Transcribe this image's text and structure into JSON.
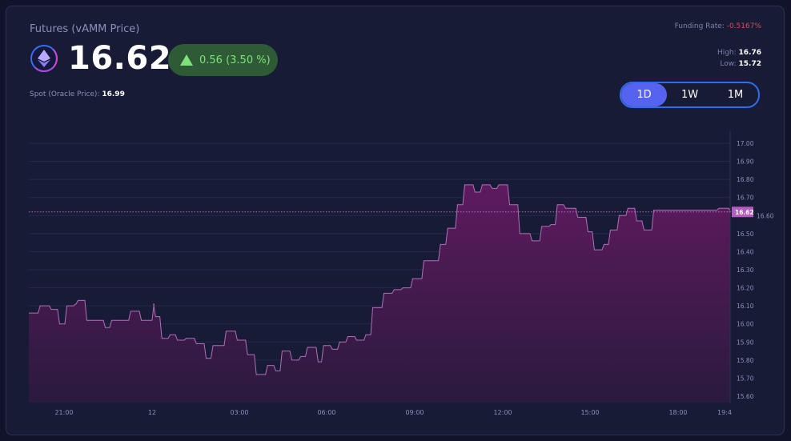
{
  "header": {
    "title": "Futures (vAMM Price)",
    "asset_icon": "ethereum-icon",
    "price": "16.62",
    "change": "0.56 (3.50 %)",
    "change_icon": "triangle-up-icon",
    "spot_label": "Spot (Oracle Price):",
    "spot_value": "16.99",
    "funding_label": "Funding Rate:",
    "funding_value": "-0.5167%",
    "high_label": "High:",
    "high_value": "16.76",
    "low_label": "Low:",
    "low_value": "15.72"
  },
  "range": {
    "options": [
      "1D",
      "1W",
      "1M"
    ],
    "selected": "1D"
  },
  "colors": {
    "positive": "#7ee37a",
    "negative": "#d0505a",
    "accent": "#5563f0",
    "line": "#b070b8",
    "price_tag": "#b45cc0"
  },
  "chart_data": {
    "type": "area",
    "step": true,
    "y_ticks": [
      "17.00",
      "16.90",
      "16.80",
      "16.70",
      "16.60",
      "16.50",
      "16.40",
      "16.30",
      "16.20",
      "16.10",
      "16.00",
      "15.90",
      "15.80",
      "15.70",
      "15.60"
    ],
    "ylim": [
      15.57,
      17.03
    ],
    "x_ticks": [
      "21:00",
      "12",
      "03:00",
      "06:00",
      "09:00",
      "12:00",
      "15:00",
      "18:00",
      "19:4"
    ],
    "current_price_label": "16.62",
    "current_price": 16.62,
    "grid": true,
    "points": [
      [
        "19:48",
        16.06
      ],
      [
        "20:07",
        16.1
      ],
      [
        "20:30",
        16.08
      ],
      [
        "20:47",
        16.0
      ],
      [
        "21:02",
        16.1
      ],
      [
        "21:20",
        16.11
      ],
      [
        "21:25",
        16.13
      ],
      [
        "21:43",
        16.02
      ],
      [
        "22:21",
        15.98
      ],
      [
        "22:34",
        16.02
      ],
      [
        "23:13",
        16.07
      ],
      [
        "23:35",
        16.02
      ],
      [
        "00:01",
        16.11
      ],
      [
        "00:04",
        16.04
      ],
      [
        "00:17",
        15.92
      ],
      [
        "00:34",
        15.94
      ],
      [
        "00:49",
        15.91
      ],
      [
        "01:07",
        15.92
      ],
      [
        "01:28",
        15.89
      ],
      [
        "01:48",
        15.81
      ],
      [
        "02:02",
        15.88
      ],
      [
        "02:29",
        15.96
      ],
      [
        "02:52",
        15.91
      ],
      [
        "03:13",
        15.83
      ],
      [
        "03:31",
        15.72
      ],
      [
        "03:54",
        15.77
      ],
      [
        "04:11",
        15.74
      ],
      [
        "04:24",
        15.85
      ],
      [
        "04:44",
        15.8
      ],
      [
        "05:02",
        15.82
      ],
      [
        "05:16",
        15.87
      ],
      [
        "05:38",
        15.79
      ],
      [
        "05:49",
        15.88
      ],
      [
        "06:07",
        15.86
      ],
      [
        "06:22",
        15.9
      ],
      [
        "06:39",
        15.93
      ],
      [
        "06:57",
        15.91
      ],
      [
        "07:16",
        15.94
      ],
      [
        "07:30",
        16.09
      ],
      [
        "07:53",
        16.17
      ],
      [
        "08:14",
        16.19
      ],
      [
        "08:32",
        16.2
      ],
      [
        "08:52",
        16.25
      ],
      [
        "09:15",
        16.35
      ],
      [
        "09:49",
        16.44
      ],
      [
        "10:04",
        16.53
      ],
      [
        "10:24",
        16.66
      ],
      [
        "10:39",
        16.77
      ],
      [
        "11:00",
        16.73
      ],
      [
        "11:15",
        16.77
      ],
      [
        "11:35",
        16.75
      ],
      [
        "11:49",
        16.77
      ],
      [
        "12:11",
        16.66
      ],
      [
        "12:32",
        16.5
      ],
      [
        "12:57",
        16.46
      ],
      [
        "13:17",
        16.54
      ],
      [
        "13:36",
        16.55
      ],
      [
        "13:49",
        16.66
      ],
      [
        "14:06",
        16.64
      ],
      [
        "14:31",
        16.59
      ],
      [
        "14:52",
        16.51
      ],
      [
        "15:05",
        16.41
      ],
      [
        "15:25",
        16.44
      ],
      [
        "15:38",
        16.52
      ],
      [
        "15:56",
        16.6
      ],
      [
        "16:14",
        16.64
      ],
      [
        "16:32",
        16.57
      ],
      [
        "16:47",
        16.52
      ],
      [
        "17:07",
        16.63
      ],
      [
        "19:21",
        16.64
      ],
      [
        "19:45",
        16.62
      ]
    ]
  }
}
